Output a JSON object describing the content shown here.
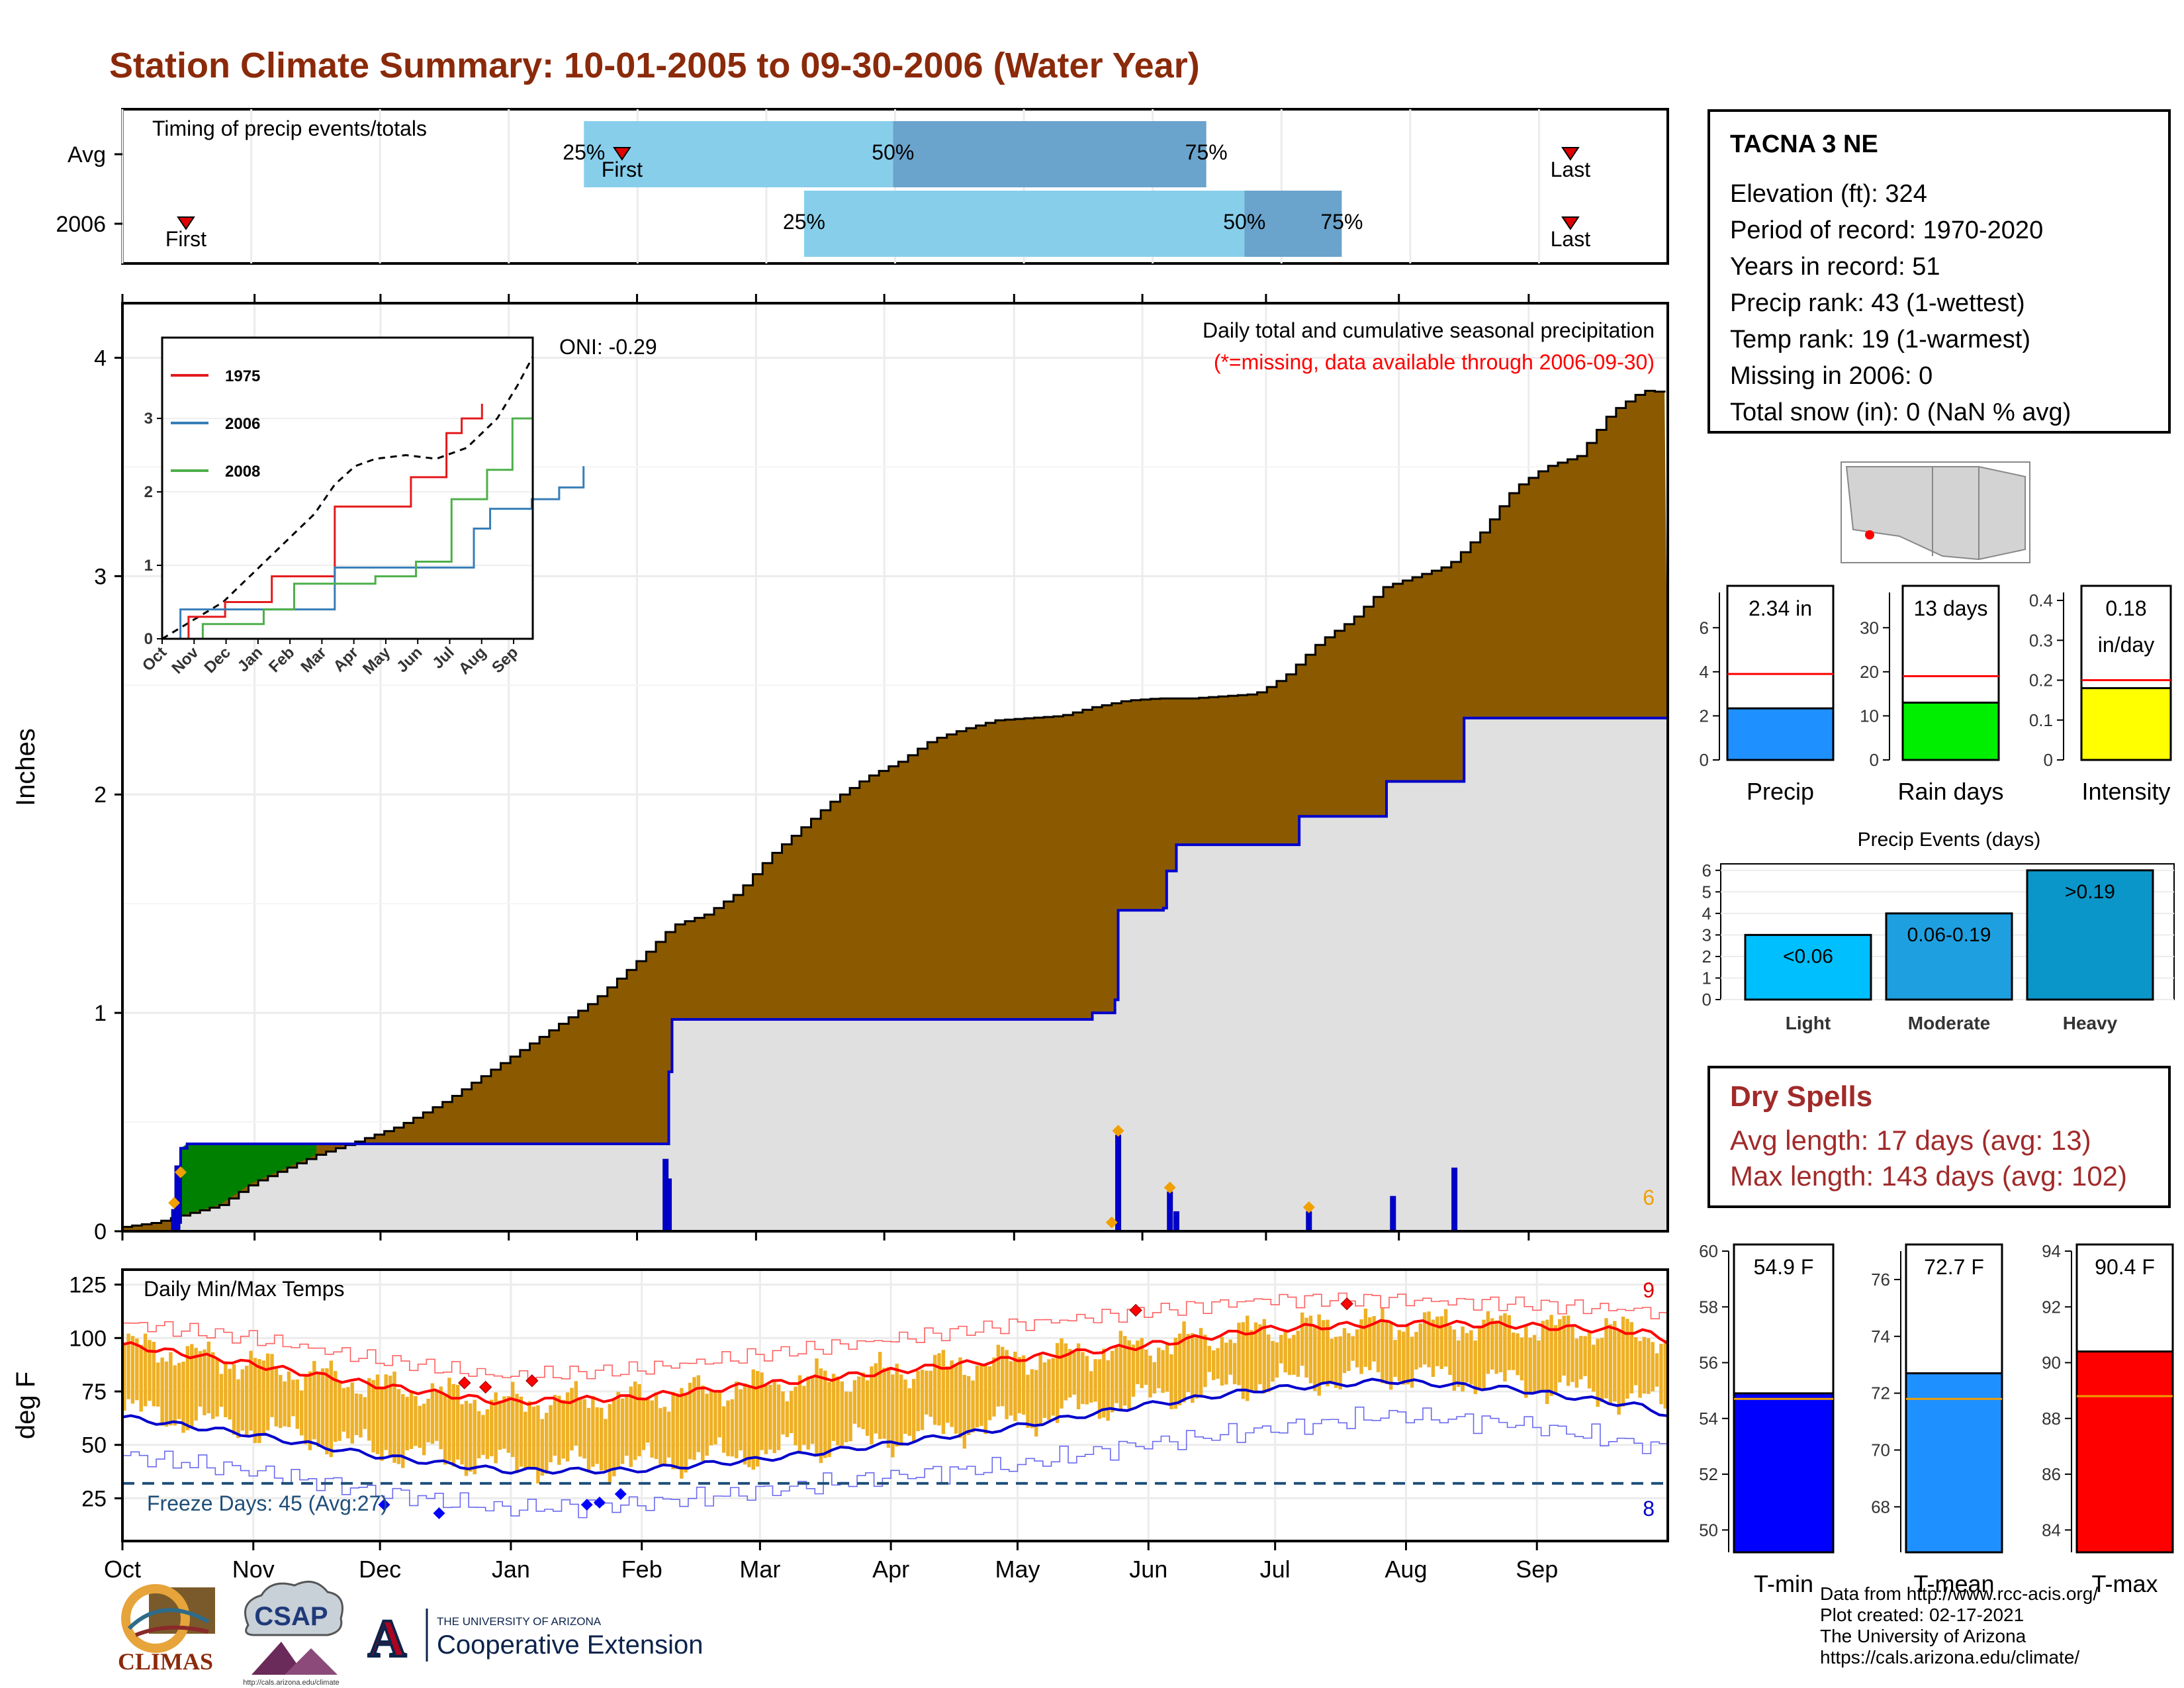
{
  "title": "Station Climate Summary: 10-01-2005 to 09-30-2006 (Water Year)",
  "station": {
    "name": "TACNA 3 NE",
    "lines": [
      "Elevation (ft): 324",
      "Period of record: 1970-2020",
      "Years in record: 51",
      "Precip rank: 43 (1-wettest)",
      "Temp rank: 19 (1-warmest)",
      "Missing in 2006: 0",
      "Total snow (in): 0 (NaN % avg)"
    ]
  },
  "dry_spells": {
    "heading": "Dry Spells",
    "avg": "Avg length: 17 days (avg: 13)",
    "max": "Max length: 143 days (avg: 102)"
  },
  "credits": {
    "lines": [
      "Data from http://www.rcc-acis.org/",
      "Plot created: 02-17-2021",
      "The University of Arizona",
      "https://cals.arizona.edu/climate/"
    ]
  },
  "logos": {
    "climas": "CLIMAS",
    "csap": "CSAP",
    "csap_url": "http://cals.arizona.edu/climate",
    "ua_small": "THE UNIVERSITY OF ARIZONA",
    "ua_big": "Cooperative Extension",
    "ua_letter": "A"
  },
  "colors": {
    "title": "#8b2a0a",
    "light_blue": "#87ceeb",
    "mid_blue": "#6aa3cc",
    "brown": "#8b5a00",
    "green": "#008000",
    "gray_fill": "#e0e0e0",
    "orange": "#e8a200",
    "red": "#ff0000",
    "blue": "#0000cc",
    "navy_dash": "#1f4e79",
    "dry_red": "#a12a2a"
  },
  "chart_data": [
    {
      "type": "bar",
      "id": "timing",
      "title": "Timing of precip events/totals",
      "rows": [
        "Avg",
        "2006"
      ],
      "unit": "day of water year",
      "avg": {
        "first": 118,
        "p25": 109,
        "p50": 182,
        "p75": 256,
        "last": 342
      },
      "y2006": {
        "first": 15,
        "p25": 161,
        "p50": 265,
        "p75": 288,
        "last": 342
      },
      "labels": {
        "first": "First",
        "last": "Last",
        "p25": "25%",
        "p50": "50%",
        "p75": "75%"
      }
    },
    {
      "type": "area",
      "id": "precip",
      "title": "Daily total and cumulative seasonal precipitation",
      "subtitle": "(*=missing, data available through 2006-09-30)",
      "ylabel": "Inches",
      "ylim": [
        0,
        4.25
      ],
      "yticks": [
        0,
        1,
        2,
        3,
        4
      ],
      "months": [
        "Oct",
        "Nov",
        "Dec",
        "Jan",
        "Feb",
        "Mar",
        "Apr",
        "May",
        "Jun",
        "Jul",
        "Aug",
        "Sep"
      ],
      "oni": "ONI: -0.29",
      "corner_count": "6",
      "avg_cumulative": [
        [
          0,
          0.02
        ],
        [
          10,
          0.04
        ],
        [
          20,
          0.08
        ],
        [
          30,
          0.12
        ],
        [
          40,
          0.22
        ],
        [
          60,
          0.35
        ],
        [
          70,
          0.4
        ],
        [
          85,
          0.48
        ],
        [
          100,
          0.6
        ],
        [
          115,
          0.75
        ],
        [
          130,
          0.9
        ],
        [
          145,
          1.05
        ],
        [
          160,
          1.25
        ],
        [
          170,
          1.4
        ],
        [
          180,
          1.45
        ],
        [
          190,
          1.55
        ],
        [
          200,
          1.72
        ],
        [
          210,
          1.85
        ],
        [
          220,
          1.98
        ],
        [
          230,
          2.08
        ],
        [
          240,
          2.15
        ],
        [
          250,
          2.25
        ],
        [
          260,
          2.3
        ],
        [
          270,
          2.34
        ],
        [
          280,
          2.35
        ],
        [
          290,
          2.36
        ],
        [
          300,
          2.4
        ],
        [
          310,
          2.43
        ],
        [
          320,
          2.44
        ],
        [
          330,
          2.44
        ],
        [
          340,
          2.45
        ],
        [
          350,
          2.46
        ],
        [
          355,
          2.5
        ],
        [
          360,
          2.55
        ],
        [
          370,
          2.7
        ],
        [
          380,
          2.8
        ],
        [
          390,
          2.95
        ],
        [
          400,
          3.0
        ],
        [
          410,
          3.05
        ],
        [
          420,
          3.2
        ],
        [
          430,
          3.4
        ],
        [
          440,
          3.5
        ],
        [
          450,
          3.55
        ],
        [
          460,
          3.75
        ],
        [
          470,
          3.85
        ],
        [
          478,
          3.84
        ]
      ],
      "cumulative_2006": [
        [
          0,
          0
        ],
        [
          15,
          0
        ],
        [
          16,
          0.04
        ],
        [
          18,
          0.38
        ],
        [
          20,
          0.4
        ],
        [
          48,
          0.4
        ],
        [
          168,
          0.4
        ],
        [
          169,
          0.73
        ],
        [
          170,
          0.97
        ],
        [
          270,
          0.97
        ],
        [
          300,
          1.0
        ],
        [
          307,
          1.06
        ],
        [
          308,
          1.47
        ],
        [
          322,
          1.48
        ],
        [
          323,
          1.65
        ],
        [
          326,
          1.77
        ],
        [
          345,
          1.77
        ],
        [
          364,
          1.9
        ],
        [
          390,
          1.9
        ],
        [
          391,
          2.06
        ],
        [
          414,
          2.06
        ],
        [
          415,
          2.35
        ],
        [
          478,
          2.35
        ]
      ],
      "daily_bars": [
        [
          16,
          0.1
        ],
        [
          17,
          0.3
        ],
        [
          168,
          0.33
        ],
        [
          169,
          0.24
        ],
        [
          308,
          0.44
        ],
        [
          324,
          0.18
        ],
        [
          326,
          0.09
        ],
        [
          367,
          0.09
        ],
        [
          393,
          0.16
        ],
        [
          412,
          0.29
        ]
      ],
      "event_markers": [
        [
          16,
          0.13
        ],
        [
          18,
          0.27
        ],
        [
          306,
          0.04
        ],
        [
          308,
          0.46
        ],
        [
          324,
          0.2
        ],
        [
          367,
          0.11
        ]
      ]
    },
    {
      "type": "line",
      "id": "inset",
      "series": [
        {
          "name": "1975",
          "values": [
            [
              0,
              0
            ],
            [
              26,
              0.3
            ],
            [
              62,
              0.5
            ],
            [
              108,
              0.85
            ],
            [
              170,
              1.8
            ],
            [
              245,
              2.2
            ],
            [
              280,
              2.8
            ],
            [
              295,
              3.0
            ],
            [
              315,
              3.2
            ]
          ]
        },
        {
          "name": "2006",
          "values": [
            [
              0,
              0
            ],
            [
              18,
              0.4
            ],
            [
              170,
              0.97
            ],
            [
              307,
              1.5
            ],
            [
              323,
              1.77
            ],
            [
              364,
              1.9
            ],
            [
              391,
              2.06
            ],
            [
              415,
              2.35
            ]
          ]
        },
        {
          "name": "2008",
          "values": [
            [
              0,
              0
            ],
            [
              40,
              0.2
            ],
            [
              100,
              0.4
            ],
            [
              130,
              0.75
            ],
            [
              210,
              0.85
            ],
            [
              250,
              1.05
            ],
            [
              285,
              1.9
            ],
            [
              320,
              2.3
            ],
            [
              345,
              3.0
            ],
            [
              365,
              3.35
            ]
          ]
        }
      ],
      "xticks": [
        "Oct",
        "Nov",
        "Dec",
        "Jan",
        "Feb",
        "Mar",
        "Apr",
        "May",
        "Jun",
        "Jul",
        "Aug",
        "Sep"
      ],
      "yticks": [
        0,
        1,
        2,
        3
      ],
      "ylim": [
        0,
        4.1
      ]
    },
    {
      "type": "line",
      "id": "temps",
      "title": "Daily Min/Max Temps",
      "ylabel": "deg F",
      "ylim": [
        5,
        132
      ],
      "yticks": [
        25,
        50,
        75,
        100,
        125
      ],
      "months": [
        "Oct",
        "Nov",
        "Dec",
        "Jan",
        "Feb",
        "Mar",
        "Apr",
        "May",
        "Jun",
        "Jul",
        "Aug",
        "Sep"
      ],
      "freeze_text": "Freeze Days: 45 (Avg:27)",
      "freeze_line": 32,
      "count_hi": "9",
      "count_lo": "8",
      "avg_max": [
        [
          0,
          97
        ],
        [
          30,
          88
        ],
        [
          60,
          78
        ],
        [
          90,
          70
        ],
        [
          120,
          72
        ],
        [
          150,
          78
        ],
        [
          180,
          84
        ],
        [
          210,
          90
        ],
        [
          240,
          96
        ],
        [
          270,
          104
        ],
        [
          300,
          107
        ],
        [
          330,
          106
        ],
        [
          360,
          103
        ],
        [
          366,
          99
        ]
      ],
      "avg_min": [
        [
          0,
          63
        ],
        [
          30,
          55
        ],
        [
          60,
          45
        ],
        [
          90,
          38
        ],
        [
          120,
          38
        ],
        [
          150,
          43
        ],
        [
          180,
          50
        ],
        [
          210,
          58
        ],
        [
          240,
          68
        ],
        [
          270,
          76
        ],
        [
          300,
          80
        ],
        [
          330,
          76
        ],
        [
          360,
          68
        ],
        [
          366,
          64
        ]
      ],
      "rec_max": [
        [
          0,
          107
        ],
        [
          30,
          100
        ],
        [
          60,
          90
        ],
        [
          90,
          82
        ],
        [
          120,
          85
        ],
        [
          150,
          92
        ],
        [
          180,
          99
        ],
        [
          210,
          106
        ],
        [
          240,
          112
        ],
        [
          270,
          118
        ],
        [
          300,
          118
        ],
        [
          330,
          116
        ],
        [
          360,
          113
        ],
        [
          366,
          110
        ]
      ],
      "rec_min": [
        [
          0,
          45
        ],
        [
          30,
          38
        ],
        [
          60,
          28
        ],
        [
          90,
          20
        ],
        [
          120,
          22
        ],
        [
          150,
          28
        ],
        [
          180,
          35
        ],
        [
          210,
          40
        ],
        [
          240,
          50
        ],
        [
          270,
          57
        ],
        [
          300,
          64
        ],
        [
          330,
          60
        ],
        [
          360,
          50
        ],
        [
          366,
          47
        ]
      ],
      "record_hi_markers": [
        [
          81,
          79
        ],
        [
          86,
          77
        ],
        [
          97,
          80
        ],
        [
          240,
          113
        ],
        [
          290,
          116
        ]
      ],
      "record_lo_markers": [
        [
          62,
          22
        ],
        [
          75,
          18
        ],
        [
          110,
          22
        ],
        [
          113,
          23
        ],
        [
          118,
          27
        ]
      ]
    },
    {
      "type": "bar",
      "id": "precip_kpis",
      "panels": [
        {
          "label": "Precip",
          "value": 2.34,
          "value_text": "2.34 in",
          "avg": 3.9,
          "ylim": [
            0,
            7.6
          ],
          "yticks": [
            0,
            2,
            4,
            6
          ],
          "color": "#1e90ff"
        },
        {
          "label": "Rain days",
          "value": 13,
          "value_text": "13 days",
          "avg": 19,
          "ylim": [
            0,
            38
          ],
          "yticks": [
            0,
            10,
            20,
            30
          ],
          "color": "#00ee00"
        },
        {
          "label": "Intensity",
          "value": 0.18,
          "value_text": "0.18 in/day",
          "avg": 0.2,
          "ylim": [
            0,
            0.42
          ],
          "yticks": [
            0.0,
            0.1,
            0.2,
            0.3,
            0.4
          ],
          "color": "#ffff00"
        }
      ]
    },
    {
      "type": "bar",
      "id": "precip_events",
      "title": "Precip Events (days)",
      "categories": [
        "Light",
        "Moderate",
        "Heavy"
      ],
      "bar_labels": [
        "<0.06",
        "0.06-0.19",
        ">0.19"
      ],
      "values": [
        3,
        4,
        6
      ],
      "ylim": [
        0,
        6.3
      ],
      "yticks": [
        0,
        1,
        2,
        3,
        4,
        5,
        6
      ]
    },
    {
      "type": "bar",
      "id": "temp_kpis",
      "panels": [
        {
          "label": "T-min",
          "value": 54.9,
          "value_text": "54.9 F",
          "avg": 54.7,
          "ylim": [
            49.2,
            60
          ],
          "yticks": [
            50,
            52,
            54,
            56,
            58,
            60
          ],
          "color": "#0000ff"
        },
        {
          "label": "T-mean",
          "value": 72.7,
          "value_text": "72.7 F",
          "avg": 71.8,
          "ylim": [
            66.4,
            77
          ],
          "yticks": [
            68,
            70,
            72,
            74,
            76
          ],
          "color": "#1e90ff"
        },
        {
          "label": "T-max",
          "value": 90.4,
          "value_text": "90.4 F",
          "avg": 88.8,
          "ylim": [
            83.2,
            94
          ],
          "yticks": [
            84,
            86,
            88,
            90,
            92,
            94
          ],
          "color": "#ff0000"
        }
      ]
    }
  ]
}
